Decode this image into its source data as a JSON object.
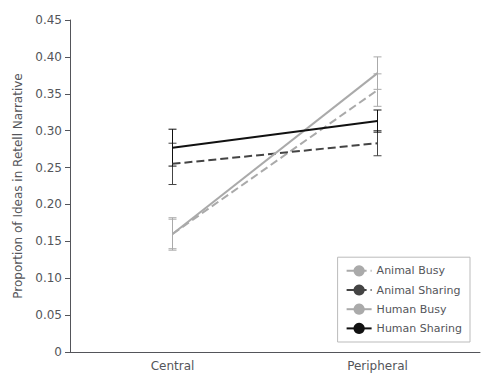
{
  "chart_data": {
    "type": "line",
    "categories": [
      "Central",
      "Peripheral"
    ],
    "series": [
      {
        "name": "Animal Busy",
        "color": "#aaaaaa",
        "line_style": "dashed",
        "values": [
          0.16,
          0.355
        ],
        "yerr": [
          0.022,
          0.022
        ]
      },
      {
        "name": "Animal Sharing",
        "color": "#444444",
        "line_style": "dashed",
        "values": [
          0.255,
          0.283
        ],
        "yerr": [
          0.028,
          0.017
        ]
      },
      {
        "name": "Human Busy",
        "color": "#aaaaaa",
        "line_style": "solid",
        "values": [
          0.16,
          0.378
        ],
        "yerr": [
          0.02,
          0.022
        ]
      },
      {
        "name": "Human Sharing",
        "color": "#111111",
        "line_style": "solid",
        "values": [
          0.277,
          0.313
        ],
        "yerr": [
          0.025,
          0.015
        ]
      }
    ],
    "ylabel": "Proportion of Ideas in Retell Narrative",
    "ylim": [
      0,
      0.45
    ],
    "yticks": [
      0,
      0.05,
      {
        "value": 0.1,
        "label": "0.10"
      },
      0.15,
      {
        "value": 0.2,
        "label": "0.20"
      },
      0.25,
      {
        "value": 0.3,
        "label": "0.30"
      },
      0.35,
      {
        "value": 0.4,
        "label": "0.40"
      },
      0.45
    ],
    "grid": false,
    "legend": "lower right"
  }
}
